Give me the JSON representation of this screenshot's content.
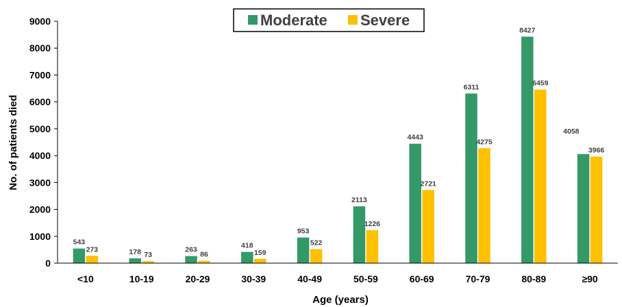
{
  "chart_data": {
    "type": "bar",
    "title": "",
    "xlabel": "Age (years)",
    "ylabel": "No. of patients died",
    "categories": [
      "<10",
      "10-19",
      "20-29",
      "30-39",
      "40-49",
      "50-59",
      "60-69",
      "70-79",
      "80-89",
      "≥90"
    ],
    "series": [
      {
        "name": "Moderate",
        "color": "#339966",
        "values": [
          543,
          178,
          263,
          418,
          953,
          2113,
          4443,
          6311,
          8427,
          4058
        ]
      },
      {
        "name": "Severe",
        "color": "#FFC000",
        "values": [
          273,
          73,
          86,
          159,
          522,
          1226,
          2721,
          4275,
          6459,
          3966
        ]
      }
    ],
    "ylim": [
      0,
      9000
    ],
    "yticks": [
      0,
      1000,
      2000,
      3000,
      4000,
      5000,
      6000,
      7000,
      8000,
      9000
    ],
    "grid": false,
    "legend_position": "top-center",
    "data_labels": true
  }
}
